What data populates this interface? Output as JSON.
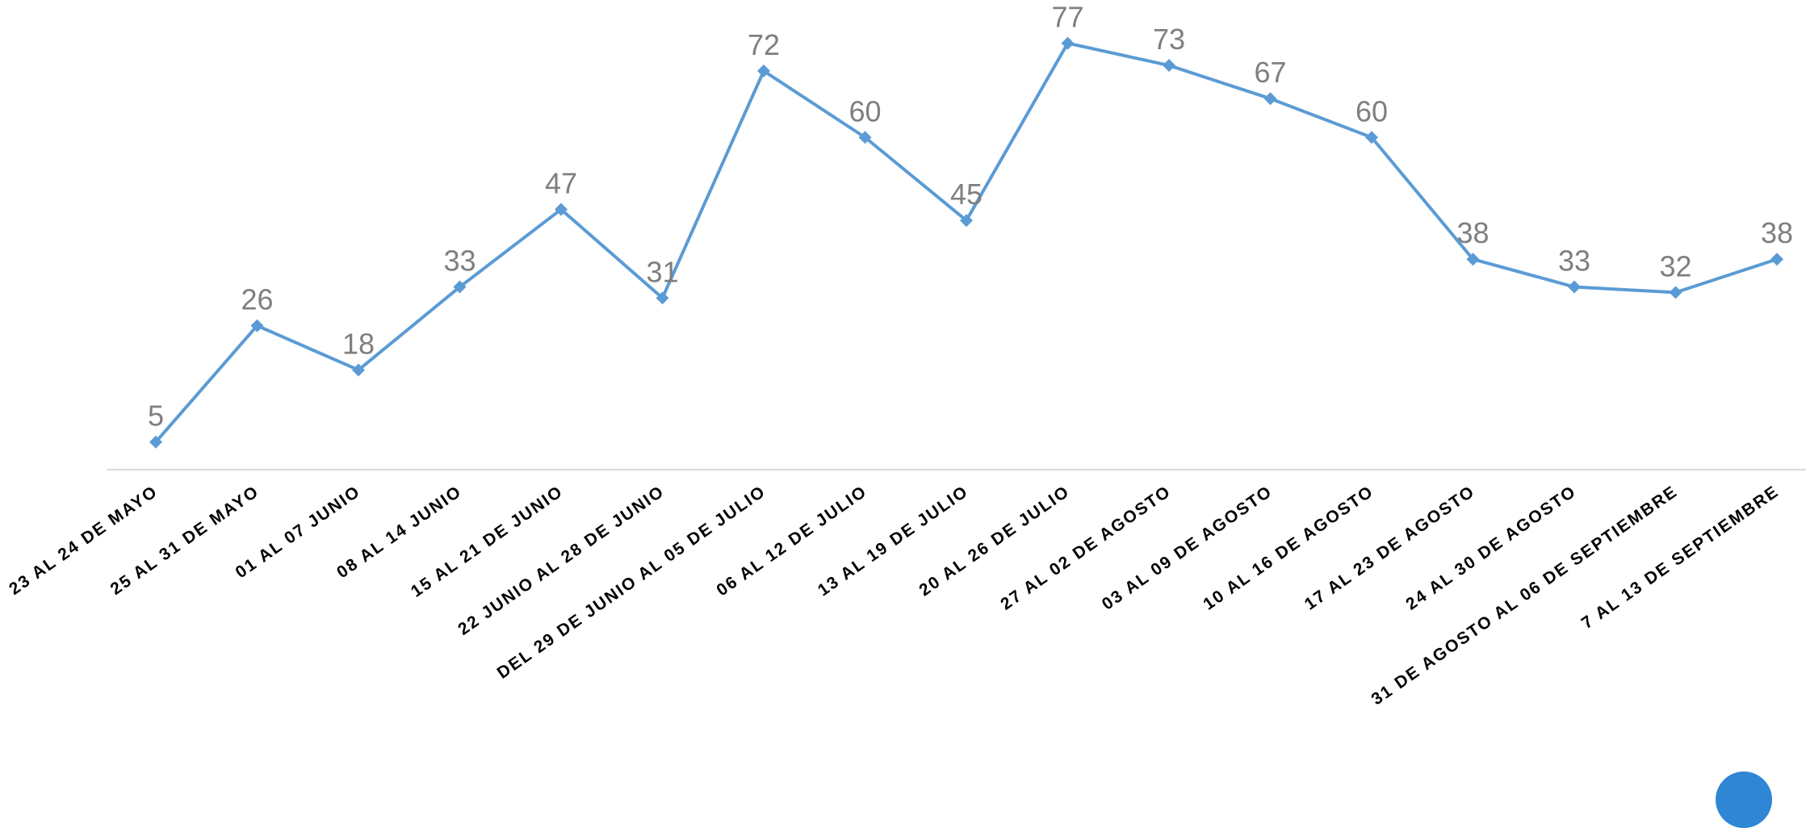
{
  "chart_data": {
    "type": "line",
    "title": "",
    "xlabel": "",
    "ylabel": "",
    "categories": [
      "23 AL 24 DE MAYO",
      "25 AL 31 DE MAYO",
      "01 AL 07 JUNIO",
      "08 AL 14 JUNIO",
      "15 AL 21 DE JUNIO",
      "22 JUNIO AL 28 DE JUNIO",
      "DEL 29 DE JUNIO AL 05 DE JULIO",
      "06 AL 12 DE JULIO",
      "13 AL 19 DE JULIO",
      "20 AL 26 DE JULIO",
      "27 AL 02 DE AGOSTO",
      "03 AL 09 DE AGOSTO",
      "10 AL 16 DE AGOSTO",
      "17 AL 23 DE AGOSTO",
      "24 AL 30 DE AGOSTO",
      "31 DE AGOSTO AL 06 DE SEPTIEMBRE",
      "7 AL 13 DE SEPTIEMBRE"
    ],
    "series": [
      {
        "values": [
          5,
          26,
          18,
          33,
          47,
          31,
          72,
          60,
          45,
          77,
          73,
          67,
          60,
          38,
          33,
          32,
          38
        ]
      }
    ],
    "ylim": [
      0,
      80
    ],
    "grid": false,
    "legend": "none",
    "data_labels": true,
    "marker": "diamond",
    "colors": {
      "series": "#5b9bd5",
      "data_label": "#7f7f7f",
      "axis": "#d9d9d9",
      "tick_label": "#000000"
    }
  },
  "logo": {
    "icon": "circle-logo-icon",
    "color": "#2e86d4"
  }
}
